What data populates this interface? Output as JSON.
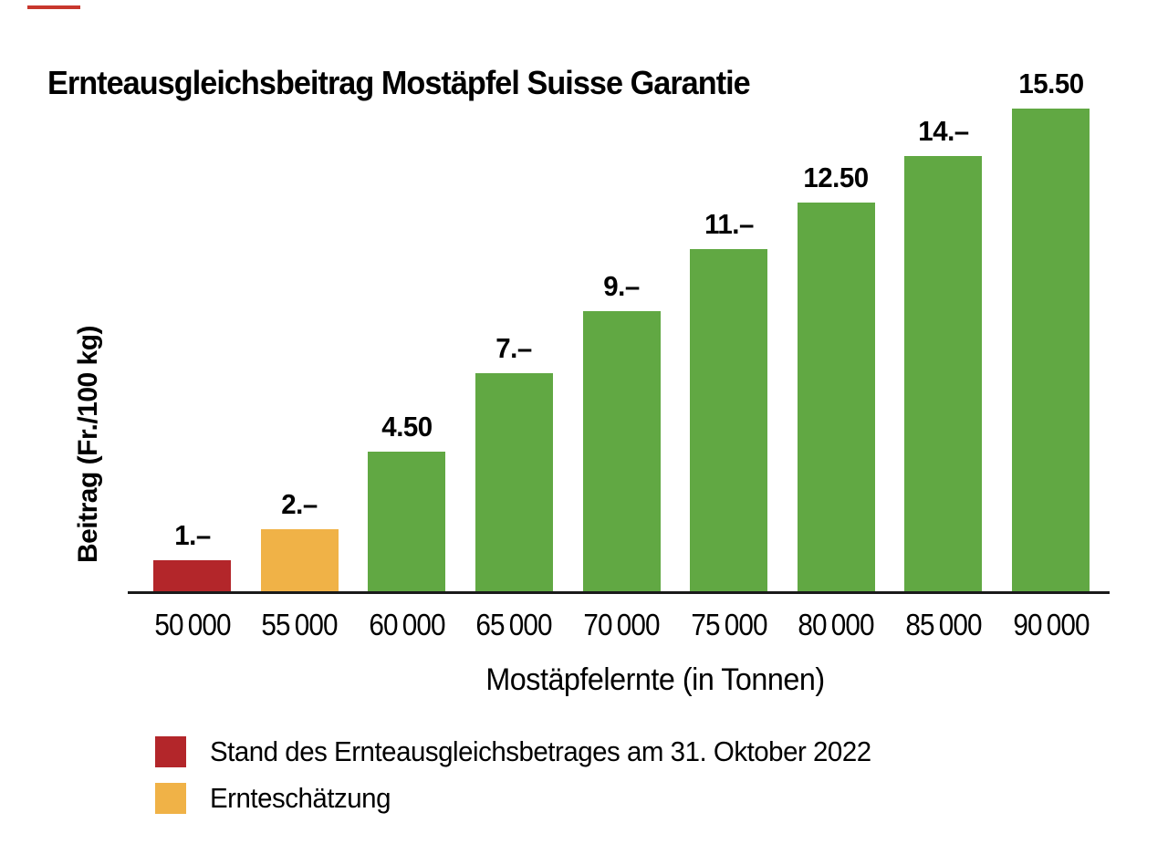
{
  "colors": {
    "accent": "#c8372d",
    "red": "#b3262a",
    "orange": "#f0b247",
    "green": "#61a843",
    "axis": "#1a1a1a"
  },
  "chart_data": {
    "type": "bar",
    "title": "Ernteausgleichsbeitrag Mostäpfel Suisse Garantie",
    "xlabel": "Mostäpfelernte (in Tonnen)",
    "ylabel": "Beitrag (Fr./100 kg)",
    "categories": [
      "50 000",
      "55 000",
      "60 000",
      "65 000",
      "70 000",
      "75 000",
      "80 000",
      "85 000",
      "90 000"
    ],
    "values": [
      1,
      2,
      4.5,
      7,
      9,
      11,
      12.5,
      14,
      15.5
    ],
    "value_labels": [
      "1.–",
      "2.–",
      "4.50",
      "7.–",
      "9.–",
      "11.–",
      "12.50",
      "14.–",
      "15.50"
    ],
    "bar_colors": [
      "#b3262a",
      "#f0b247",
      "#61a843",
      "#61a843",
      "#61a843",
      "#61a843",
      "#61a843",
      "#61a843",
      "#61a843"
    ],
    "ylim": [
      0,
      16.2
    ],
    "grid": false,
    "legend_position": "bottom-left",
    "legend": [
      {
        "label": "Stand des Ernteausgleichsbetrages am 31. Oktober 2022",
        "color": "#b3262a"
      },
      {
        "label": "Ernteschätzung",
        "color": "#f0b247"
      }
    ]
  }
}
